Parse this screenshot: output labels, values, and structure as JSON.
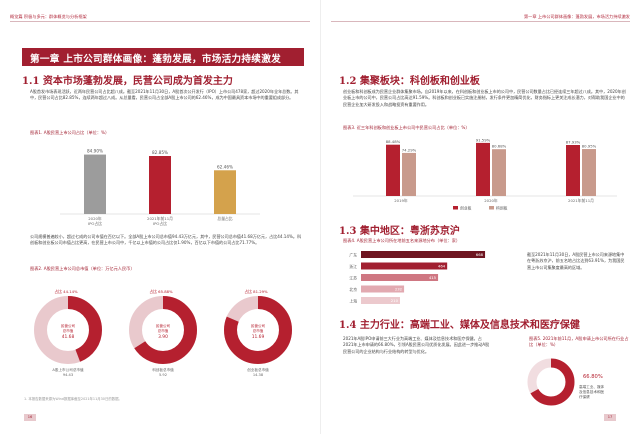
{
  "header": {
    "left": "概览篇 积极与多元：群体概览与分析框架",
    "right": "第一章 上市公司群体画像：蓬勃发展，市场活力持续激发"
  },
  "chapter_title": "第一章 上市公司群体画像：蓬勃发展，市场活力持续激发",
  "s11": {
    "title": "1.1 资本市场蓬勃发展，民营公司成为首发主力",
    "para1": "A股首发市场表现活跃，近两年民营公司占比超八成。截至2021年11月30日，A股首次公开发行（IPO）上市公司478家，超过2020年全年总数。其中，民营公司占比82.85%，连续两年超过八成。从总量看，民营公司占全部A股上市公司的62.46%，成为中国最具资本市场中的重要组成部分。",
    "fig1_caption": "图表1. A股民营上市公司占比（单位：%）",
    "para2": "公司规模普遍较小，超过七成的公司市值在百亿以下。全部A股上市公司总市值94.43万亿元，其中，民营公司总市值41.68万亿元，占比44.14%。科创板和创业板公司市值占比更高，在民营上市公司中，千亿以上市值的公司占比仅1.90%，百亿以下市值的公司占比71.77%。",
    "fig2_caption": "图表2. A股民营上市公司总市值（单位：万亿元人民币）",
    "note": "1. 本报告数据来源为Wind数据库截至2021年11月30日的数据。"
  },
  "chart_data": [
    {
      "type": "bar",
      "categories": [
        "2020年IPO占比",
        "2021年前11月IPO占比",
        "总量占比"
      ],
      "values": [
        84.9,
        82.85,
        62.46
      ],
      "value_labels": [
        "84.90%",
        "82.85%",
        "62.46%"
      ],
      "colors": [
        "#9c9c9c",
        "#b5202f",
        "#d4a24c"
      ],
      "ylim": [
        0,
        100
      ]
    },
    {
      "type": "pie",
      "rings": [
        {
          "pct_label": "占比 44.14%",
          "pct": 44.14,
          "inner_label": "民营公司总市值",
          "inner_value": "41.68",
          "outer_label": "A股上市公司总市值",
          "outer_value": "94.43"
        },
        {
          "pct_label": "占比 65.88%",
          "pct": 65.88,
          "inner_label": "民营公司总市值",
          "inner_value": "3.90",
          "outer_label": "科创板总市值",
          "outer_value": "5.92"
        },
        {
          "pct_label": "占比 81.29%",
          "pct": 81.29,
          "inner_label": "民营公司总市值",
          "inner_value": "11.69",
          "outer_label": "创业板总市值",
          "outer_value": "14.38"
        }
      ],
      "colors": {
        "fill": "#b5202f",
        "rest": "#e9c9cd"
      }
    },
    {
      "type": "bar",
      "categories": [
        "2019年",
        "2020年",
        "2021年前11月"
      ],
      "series": [
        {
          "name": "创业板",
          "values": [
            88.48,
            91.59,
            87.93
          ],
          "labels": [
            "88.48%",
            "91.59%",
            "87.93%"
          ],
          "color": "#b5202f"
        },
        {
          "name": "科创板",
          "values": [
            74.29,
            80.68,
            80.95
          ],
          "labels": [
            "74.29%",
            "80.68%",
            "80.95%"
          ],
          "color": "#c89a8c"
        }
      ],
      "ylim": [
        0,
        100
      ]
    },
    {
      "type": "bar",
      "orientation": "horizontal",
      "categories": [
        "广东",
        "浙江",
        "江苏",
        "北京",
        "上海"
      ],
      "values": [
        668,
        464,
        415,
        232,
        210
      ],
      "colors": [
        "#6e1520",
        "#a11f30",
        "#cf7782",
        "#e2a9b0",
        "#ecc9cd"
      ]
    },
    {
      "type": "pie",
      "value": 66.8,
      "label": "66.80%",
      "caption": "高端工业、媒体及信息技术和医疗保健",
      "colors": {
        "fill": "#b5202f",
        "rest": "#f1dde0"
      }
    }
  ],
  "s12": {
    "title": "1.2 集聚板块：科创板和创业板",
    "para": "创业板和科创板成为民营企业群体集聚市场。自2019年以来，在科创板和创业板上市的公司中，民营公司数量占比已经连续三年超过八成。其中，2020年创业板上市的公司中，民营公司占比高达91.59%。科创板和创业板已实施注册制，发行条件更加精简优化，财务指标上更关注成长潜力，对帮助我国企业中的民营企业加大研发投入和战略投资有重要作用。",
    "fig3_caption": "图表3. 近三年科创板和创业板上市公司中民营公司占比（单位：%）"
  },
  "s13": {
    "title": "1.3 集中地区：粤浙苏京沪",
    "fig4_caption": "图表4. A股民营上市公司所在地前五名来源地分布（单位：家）",
    "side_text": "截至2021年11月30日，A股民营上市公司来源地集中在粤浙苏京沪，前五名地占比达到63.91%，为我国民营上市公司集聚度最高的区域。"
  },
  "s14": {
    "title": "1.4 主力行业：高端工业、媒体及信息技术和医疗保健",
    "para": "2021年A股IPO申请前三大行业为高端工业、媒体及信息技术和医疗保健。占2021年上市申请的66.80%，引领A股民营公司优质化发展。因此进一步推动A股民营公司的企业结构与行业结构的转型与优化。",
    "fig5_caption": "图表5. 2021年前11月，A股申请上市公司所在行业占比（单位：%）"
  },
  "page_numbers": {
    "left": "16",
    "right": "17"
  }
}
